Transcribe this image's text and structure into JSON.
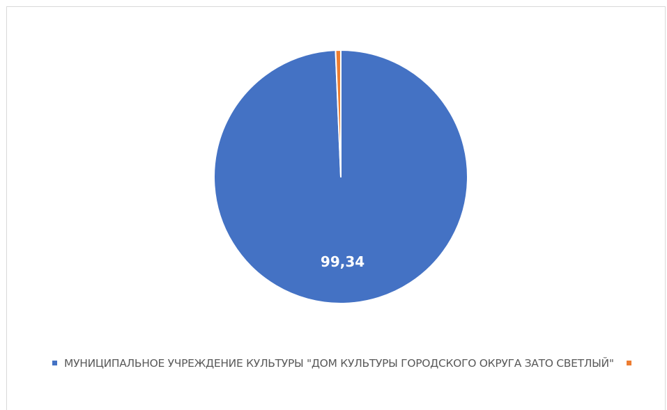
{
  "chart_data": {
    "type": "pie",
    "title": "",
    "series": [
      {
        "name": "МУНИЦИПАЛЬНОЕ УЧРЕЖДЕНИЕ КУЛЬТУРЫ \"ДОМ КУЛЬТУРЫ ГОРОДСКОГО ОКРУГА ЗАТО СВЕТЛЫЙ\"",
        "value": 99.34,
        "label": "99,34",
        "color": "#4472C4"
      },
      {
        "name": "",
        "value": 0.66,
        "label": "",
        "color": "#ED7D31"
      }
    ],
    "legend_position": "bottom",
    "slice_border_color": "#ffffff"
  }
}
